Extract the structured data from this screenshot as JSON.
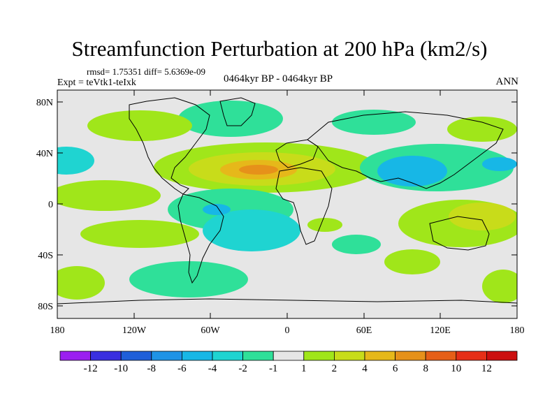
{
  "title": "Streamfunction Perturbation at 200 hPa (km2/s)",
  "stats": "rmsd= 1.75351 diff= 5.6369e-09",
  "experiment": "Expt = teVtk1-teIxk",
  "period": "0464kyr BP - 0464kyr BP",
  "season": "ANN",
  "map": {
    "projection": "cylindrical equidistant",
    "lat_range": [
      -90,
      90
    ],
    "lon_range": [
      -180,
      180
    ],
    "lat_tick_labels": [
      "80N",
      "40N",
      "0",
      "40S",
      "80S"
    ],
    "lon_tick_labels": [
      "180",
      "120W",
      "60W",
      "0",
      "60E",
      "120E",
      "180"
    ],
    "background_color": "#e6e6e6"
  },
  "colorbar": {
    "labels": [
      "-12",
      "-10",
      "-8",
      "-6",
      "-4",
      "-2",
      "-1",
      "1",
      "2",
      "4",
      "6",
      "8",
      "10",
      "12"
    ],
    "colors": [
      "#9b1ff0",
      "#3a2fe0",
      "#1f5fd9",
      "#1f93e6",
      "#17b7e6",
      "#1fd4d1",
      "#2fe099",
      "#e6e6e6",
      "#a0e61a",
      "#c8dc1a",
      "#e6b81a",
      "#e6911a",
      "#e65f17",
      "#e62f17",
      "#cc0f0f"
    ]
  },
  "regions": [
    {
      "name": "n-pacific-positive",
      "value": 2,
      "color": "#a0e61a"
    },
    {
      "name": "n-atlantic-positive",
      "value": 4,
      "color": "#c8dc1a"
    },
    {
      "name": "n-atlantic-core",
      "value": 8,
      "color": "#e6911a"
    },
    {
      "name": "asia-negative",
      "value": -4,
      "color": "#17b7e6"
    },
    {
      "name": "s-atlantic-negative",
      "value": -4,
      "color": "#17b7e6"
    },
    {
      "name": "indo-pacific-positive",
      "value": 4,
      "color": "#c8dc1a"
    },
    {
      "name": "southern-ocean-negative",
      "value": -2,
      "color": "#1fd4d1"
    }
  ]
}
